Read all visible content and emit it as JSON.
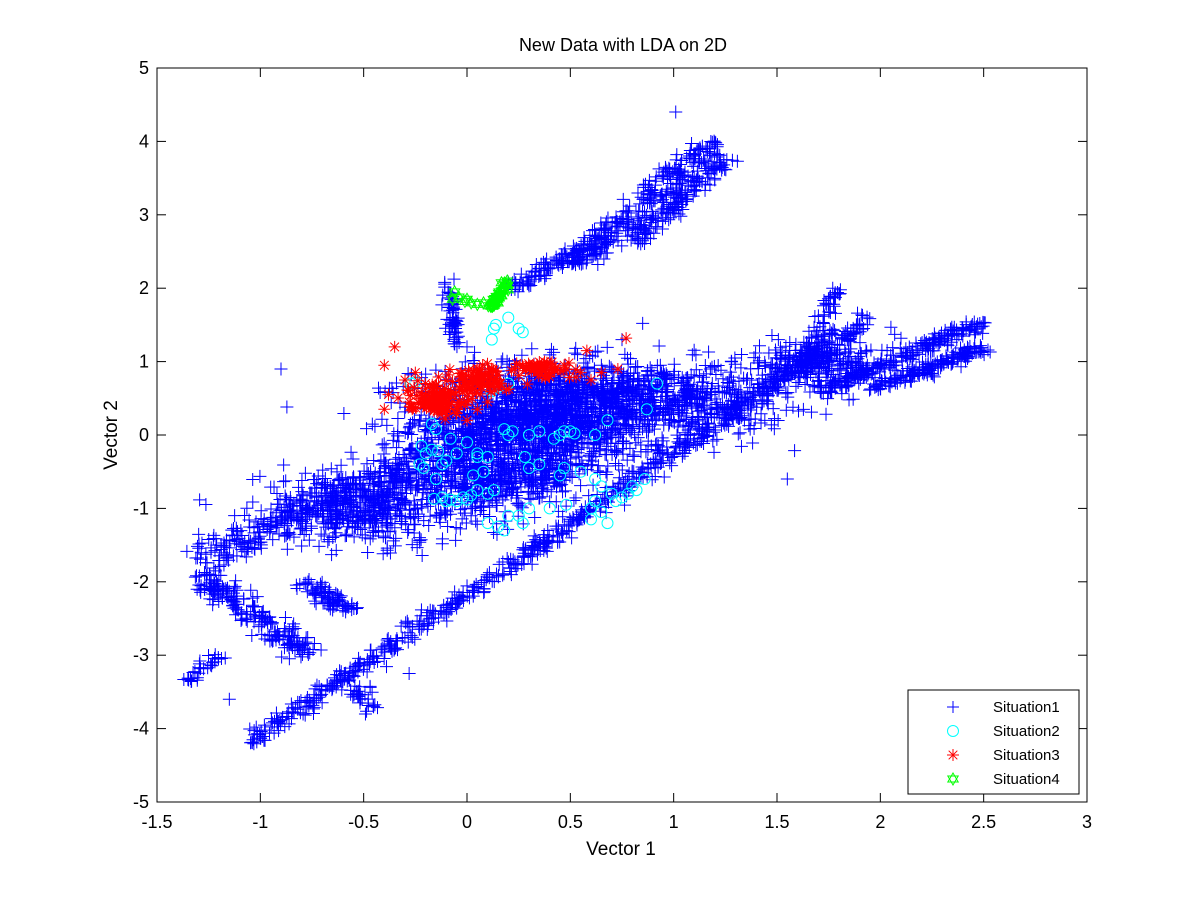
{
  "chart_data": {
    "type": "scatter",
    "title": "New Data with LDA on 2D",
    "xlabel": "Vector 1",
    "ylabel": "Vector 2",
    "xlim": [
      -1.5,
      3
    ],
    "ylim": [
      -5,
      5
    ],
    "xticks": [
      -1.5,
      -1,
      -0.5,
      0,
      0.5,
      1,
      1.5,
      2,
      2.5,
      3
    ],
    "xtick_labels": [
      "-1.5",
      "-1",
      "-0.5",
      "0",
      "0.5",
      "1",
      "1.5",
      "2",
      "2.5",
      "3"
    ],
    "yticks": [
      -5,
      -4,
      -3,
      -2,
      -1,
      0,
      1,
      2,
      3,
      4,
      5
    ],
    "ytick_labels": [
      "-5",
      "-4",
      "-3",
      "-2",
      "-1",
      "0",
      "1",
      "2",
      "3",
      "4",
      "5"
    ],
    "grid": false,
    "legend_position": "bottom-right",
    "series": [
      {
        "name": "Situation1",
        "marker": "plus",
        "color": "#0000ff",
        "clusters": [
          {
            "center": [
              0.35,
              0.2
            ],
            "spread": [
              0.55,
              0.7
            ],
            "n": 1400
          },
          {
            "center": [
              0.9,
              0.5
            ],
            "spread": [
              0.6,
              0.45
            ],
            "n": 700
          },
          {
            "center": [
              -0.5,
              -1.0
            ],
            "spread": [
              0.45,
              0.45
            ],
            "n": 500
          },
          {
            "center": [
              1.7,
              1.0
            ],
            "spread": [
              0.35,
              0.3
            ],
            "n": 260
          },
          {
            "center": [
              0.1,
              -0.6
            ],
            "spread": [
              0.4,
              0.4
            ],
            "n": 500
          }
        ],
        "streaks": [
          {
            "from": [
              -1.05,
              -4.2
            ],
            "to": [
              1.95,
              1.6
            ],
            "n": 700,
            "width": 0.06
          },
          {
            "from": [
              -1.3,
              -1.7
            ],
            "to": [
              0.4,
              0.5
            ],
            "n": 420,
            "width": 0.12
          },
          {
            "from": [
              -1.3,
              -1.9
            ],
            "to": [
              -0.75,
              -3.0
            ],
            "n": 200,
            "width": 0.08
          },
          {
            "from": [
              -0.8,
              -2.0
            ],
            "to": [
              -0.55,
              -2.4
            ],
            "n": 80,
            "width": 0.06
          },
          {
            "from": [
              0.5,
              2.3
            ],
            "to": [
              1.2,
              4.0
            ],
            "n": 260,
            "width": 0.08
          },
          {
            "from": [
              0.8,
              2.6
            ],
            "to": [
              1.25,
              3.8
            ],
            "n": 150,
            "width": 0.07
          },
          {
            "from": [
              1.7,
              0.6
            ],
            "to": [
              2.5,
              1.55
            ],
            "n": 220,
            "width": 0.05
          },
          {
            "from": [
              1.95,
              0.6
            ],
            "to": [
              2.5,
              1.2
            ],
            "n": 160,
            "width": 0.05
          },
          {
            "from": [
              -0.1,
              2.2
            ],
            "to": [
              -0.05,
              1.2
            ],
            "n": 60,
            "width": 0.03
          },
          {
            "from": [
              0.2,
              2.0
            ],
            "to": [
              0.6,
              2.6
            ],
            "n": 90,
            "width": 0.06
          },
          {
            "from": [
              -1.35,
              -3.35
            ],
            "to": [
              -1.2,
              -3.0
            ],
            "n": 30,
            "width": 0.04
          },
          {
            "from": [
              -0.55,
              -3.4
            ],
            "to": [
              -0.45,
              -3.8
            ],
            "n": 30,
            "width": 0.05
          },
          {
            "from": [
              1.6,
              0.9
            ],
            "to": [
              1.8,
              2.0
            ],
            "n": 60,
            "width": 0.04
          }
        ],
        "points": [
          [
            1.01,
            4.4
          ],
          [
            -0.9,
            0.9
          ],
          [
            -1.15,
            -3.6
          ],
          [
            -0.28,
            -3.25
          ],
          [
            0.75,
            1.3
          ],
          [
            1.55,
            -0.6
          ],
          [
            0.0,
            1.2
          ]
        ]
      },
      {
        "name": "Situation2",
        "marker": "circle",
        "color": "#00ffff",
        "points": [
          [
            0.12,
            1.3
          ],
          [
            0.14,
            1.5
          ],
          [
            0.2,
            1.6
          ],
          [
            0.25,
            1.45
          ],
          [
            0.27,
            1.4
          ],
          [
            0.13,
            1.45
          ],
          [
            -0.27,
            0.7
          ],
          [
            -0.25,
            0.72
          ],
          [
            0.15,
            0.65
          ],
          [
            0.12,
            0.6
          ],
          [
            0.2,
            0.7
          ],
          [
            0.92,
            0.7
          ],
          [
            0.87,
            0.35
          ],
          [
            -0.17,
            0.15
          ],
          [
            -0.15,
            0.08
          ],
          [
            -0.22,
            -0.15
          ],
          [
            -0.2,
            -0.25
          ],
          [
            -0.17,
            -0.2
          ],
          [
            -0.14,
            -0.22
          ],
          [
            -0.23,
            -0.4
          ],
          [
            -0.21,
            -0.45
          ],
          [
            -0.08,
            -0.05
          ],
          [
            0.0,
            -0.1
          ],
          [
            0.05,
            -0.25
          ],
          [
            0.1,
            -0.3
          ],
          [
            0.08,
            -0.5
          ],
          [
            0.03,
            -0.55
          ],
          [
            -0.1,
            -0.35
          ],
          [
            -0.12,
            -0.4
          ],
          [
            -0.15,
            -0.6
          ],
          [
            0.2,
            -0.0
          ],
          [
            0.22,
            0.05
          ],
          [
            0.18,
            0.08
          ],
          [
            0.3,
            0.0
          ],
          [
            0.35,
            0.05
          ],
          [
            0.42,
            -0.05
          ],
          [
            0.45,
            0.0
          ],
          [
            0.47,
            0.05
          ],
          [
            0.5,
            0.05
          ],
          [
            0.52,
            0.02
          ],
          [
            0.62,
            0.0
          ],
          [
            0.68,
            0.2
          ],
          [
            0.45,
            -0.55
          ],
          [
            0.47,
            -0.45
          ],
          [
            0.35,
            -0.4
          ],
          [
            0.28,
            -0.3
          ],
          [
            0.3,
            -0.45
          ],
          [
            0.55,
            -0.5
          ],
          [
            0.62,
            -0.6
          ],
          [
            0.65,
            -0.7
          ],
          [
            0.7,
            -0.8
          ],
          [
            0.72,
            -0.9
          ],
          [
            0.75,
            -0.85
          ],
          [
            0.78,
            -0.8
          ],
          [
            0.82,
            -0.75
          ],
          [
            0.86,
            -0.6
          ],
          [
            0.8,
            -0.7
          ],
          [
            0.62,
            -0.9
          ],
          [
            0.6,
            -1.0
          ],
          [
            0.65,
            -1.05
          ],
          [
            0.6,
            -1.15
          ],
          [
            0.68,
            -1.2
          ],
          [
            0.3,
            -1.0
          ],
          [
            0.25,
            -1.1
          ],
          [
            0.2,
            -1.1
          ],
          [
            0.27,
            -1.2
          ],
          [
            0.4,
            -1.0
          ],
          [
            0.48,
            -0.95
          ],
          [
            0.13,
            -0.75
          ],
          [
            0.1,
            -0.8
          ],
          [
            0.05,
            -0.75
          ],
          [
            0.02,
            -0.82
          ],
          [
            -0.02,
            -0.85
          ],
          [
            -0.05,
            -0.9
          ],
          [
            -0.08,
            -0.88
          ],
          [
            -0.12,
            -0.85
          ],
          [
            -0.16,
            -0.87
          ],
          [
            -0.1,
            -0.9
          ],
          [
            0.0,
            -0.88
          ],
          [
            0.1,
            -1.2
          ],
          [
            0.15,
            -1.25
          ],
          [
            0.18,
            -1.3
          ],
          [
            0.05,
            -0.3
          ],
          [
            -0.05,
            -0.25
          ]
        ]
      },
      {
        "name": "Situation3",
        "marker": "asterisk",
        "color": "#ff0000",
        "clusters": [
          {
            "center": [
              -0.15,
              0.5
            ],
            "spread": [
              0.12,
              0.18
            ],
            "n": 130
          },
          {
            "center": [
              0.05,
              0.75
            ],
            "spread": [
              0.12,
              0.18
            ],
            "n": 90
          },
          {
            "center": [
              0.35,
              0.9
            ],
            "spread": [
              0.15,
              0.12
            ],
            "n": 60
          }
        ],
        "points": [
          [
            -0.35,
            1.2
          ],
          [
            -0.4,
            0.95
          ],
          [
            -0.3,
            0.75
          ],
          [
            -0.4,
            0.35
          ],
          [
            -0.38,
            0.55
          ],
          [
            0.55,
            0.85
          ],
          [
            0.6,
            0.75
          ],
          [
            0.65,
            0.85
          ],
          [
            0.73,
            0.9
          ],
          [
            0.77,
            1.32
          ],
          [
            0.58,
            1.15
          ],
          [
            0.47,
            0.95
          ],
          [
            0.05,
            0.35
          ],
          [
            0.1,
            0.45
          ],
          [
            -0.05,
            0.3
          ],
          [
            0.0,
            0.2
          ],
          [
            -0.28,
            0.45
          ],
          [
            -0.25,
            0.85
          ]
        ]
      },
      {
        "name": "Situation4",
        "marker": "hexagram",
        "color": "#00ff00",
        "streaks": [
          {
            "from": [
              0.12,
              1.75
            ],
            "to": [
              0.2,
              2.1
            ],
            "n": 40,
            "width": 0.02
          }
        ],
        "points": [
          [
            -0.07,
            1.85
          ],
          [
            -0.04,
            1.88
          ],
          [
            -0.01,
            1.82
          ],
          [
            0.02,
            1.8
          ],
          [
            0.05,
            1.78
          ],
          [
            0.08,
            1.8
          ],
          [
            -0.06,
            1.95
          ],
          [
            0.0,
            1.85
          ]
        ]
      }
    ]
  }
}
